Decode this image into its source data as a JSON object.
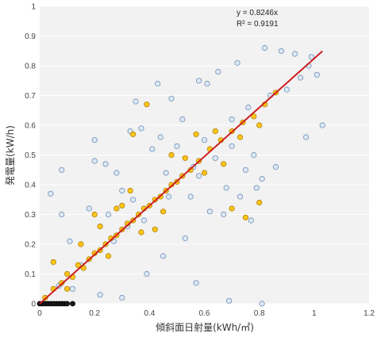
{
  "chart_data": {
    "type": "scatter",
    "title": "",
    "xlabel": "傾斜面日射量(kWh/㎡)",
    "ylabel": "発電量(kW/h)",
    "xlim": [
      0,
      1.2
    ],
    "ylim": [
      0,
      1
    ],
    "xticks": [
      "0",
      "0.2",
      "0.4",
      "0.6",
      "0.8",
      "1",
      "1.2"
    ],
    "yticks": [
      "0",
      "0.1",
      "0.2",
      "0.3",
      "0.4",
      "0.5",
      "0.6",
      "0.7",
      "0.8",
      "0.9",
      "1"
    ],
    "grid": "horizontal",
    "legend": "none",
    "colors": {
      "series_blue_fill": "#dde8f5",
      "series_blue_stroke": "#6f8fb5",
      "series_yellow_fill": "#ffc61a",
      "series_yellow_stroke": "#b07d00",
      "series_black": "#1a1a1a",
      "trendline": "#cc1f1f",
      "plot_background": "#f2f2f2",
      "gridline": "#ffffff"
    },
    "trendline": {
      "equation": "y = 0.8246x",
      "r_squared": "R² = 0.9191",
      "slope": 0.8246,
      "x_range": [
        0,
        1.03
      ]
    },
    "series": [
      {
        "values": [
          [
            0.88,
            0.85
          ],
          [
            0.72,
            0.81
          ],
          [
            0.82,
            0.86
          ],
          [
            0.65,
            0.78
          ],
          [
            0.93,
            0.84
          ],
          [
            0.58,
            0.75
          ],
          [
            0.48,
            0.69
          ],
          [
            0.35,
            0.68
          ],
          [
            0.43,
            0.74
          ],
          [
            0.61,
            0.74
          ],
          [
            0.98,
            0.8
          ],
          [
            1.01,
            0.77
          ],
          [
            1.03,
            0.6
          ],
          [
            0.97,
            0.56
          ],
          [
            0.86,
            0.46
          ],
          [
            0.78,
            0.5
          ],
          [
            0.75,
            0.45
          ],
          [
            0.81,
            0.42
          ],
          [
            0.79,
            0.39
          ],
          [
            0.68,
            0.39
          ],
          [
            0.57,
            0.07
          ],
          [
            0.69,
            0.01
          ],
          [
            0.81,
            0.0
          ],
          [
            0.3,
            0.38
          ],
          [
            0.24,
            0.47
          ],
          [
            0.2,
            0.48
          ],
          [
            0.08,
            0.45
          ],
          [
            0.04,
            0.37
          ],
          [
            0.08,
            0.3
          ],
          [
            0.2,
            0.55
          ],
          [
            0.33,
            0.58
          ],
          [
            0.37,
            0.59
          ],
          [
            0.44,
            0.56
          ],
          [
            0.5,
            0.53
          ],
          [
            0.15,
            0.13
          ],
          [
            0.12,
            0.05
          ],
          [
            0.07,
            0.06
          ],
          [
            0.11,
            0.21
          ],
          [
            0.22,
            0.03
          ],
          [
            0.3,
            0.02
          ],
          [
            0.39,
            0.1
          ],
          [
            0.45,
            0.16
          ],
          [
            0.38,
            0.28
          ],
          [
            0.55,
            0.36
          ],
          [
            0.62,
            0.31
          ],
          [
            0.67,
            0.3
          ],
          [
            0.73,
            0.36
          ],
          [
            0.77,
            0.28
          ],
          [
            0.56,
            0.46
          ],
          [
            0.52,
            0.62
          ],
          [
            0.41,
            0.52
          ],
          [
            0.28,
            0.44
          ],
          [
            0.18,
            0.32
          ],
          [
            0.25,
            0.3
          ],
          [
            0.32,
            0.26
          ],
          [
            0.46,
            0.44
          ],
          [
            0.6,
            0.55
          ],
          [
            0.7,
            0.62
          ],
          [
            0.76,
            0.66
          ],
          [
            0.84,
            0.7
          ],
          [
            0.9,
            0.72
          ],
          [
            0.95,
            0.76
          ],
          [
            0.99,
            0.83
          ],
          [
            0.53,
            0.22
          ],
          [
            0.47,
            0.36
          ],
          [
            0.58,
            0.43
          ],
          [
            0.64,
            0.49
          ],
          [
            0.7,
            0.53
          ],
          [
            0.34,
            0.35
          ],
          [
            0.27,
            0.21
          ]
        ]
      },
      {
        "values": [
          [
            0.02,
            0.02
          ],
          [
            0.05,
            0.05
          ],
          [
            0.08,
            0.07
          ],
          [
            0.1,
            0.1
          ],
          [
            0.12,
            0.09
          ],
          [
            0.14,
            0.13
          ],
          [
            0.16,
            0.12
          ],
          [
            0.18,
            0.15
          ],
          [
            0.2,
            0.17
          ],
          [
            0.22,
            0.18
          ],
          [
            0.24,
            0.2
          ],
          [
            0.26,
            0.22
          ],
          [
            0.28,
            0.23
          ],
          [
            0.3,
            0.25
          ],
          [
            0.32,
            0.27
          ],
          [
            0.34,
            0.28
          ],
          [
            0.36,
            0.3
          ],
          [
            0.38,
            0.32
          ],
          [
            0.4,
            0.33
          ],
          [
            0.42,
            0.35
          ],
          [
            0.44,
            0.36
          ],
          [
            0.46,
            0.38
          ],
          [
            0.48,
            0.4
          ],
          [
            0.5,
            0.41
          ],
          [
            0.52,
            0.43
          ],
          [
            0.55,
            0.45
          ],
          [
            0.58,
            0.48
          ],
          [
            0.62,
            0.52
          ],
          [
            0.66,
            0.55
          ],
          [
            0.7,
            0.58
          ],
          [
            0.74,
            0.61
          ],
          [
            0.78,
            0.63
          ],
          [
            0.82,
            0.67
          ],
          [
            0.86,
            0.71
          ],
          [
            0.22,
            0.26
          ],
          [
            0.3,
            0.33
          ],
          [
            0.37,
            0.24
          ],
          [
            0.45,
            0.31
          ],
          [
            0.53,
            0.49
          ],
          [
            0.6,
            0.44
          ],
          [
            0.67,
            0.47
          ],
          [
            0.73,
            0.56
          ],
          [
            0.8,
            0.6
          ],
          [
            0.39,
            0.67
          ],
          [
            0.34,
            0.57
          ],
          [
            0.2,
            0.3
          ],
          [
            0.7,
            0.32
          ],
          [
            0.75,
            0.29
          ],
          [
            0.8,
            0.34
          ],
          [
            0.05,
            0.14
          ],
          [
            0.15,
            0.2
          ],
          [
            0.25,
            0.16
          ],
          [
            0.42,
            0.25
          ],
          [
            0.48,
            0.5
          ],
          [
            0.57,
            0.57
          ],
          [
            0.64,
            0.58
          ],
          [
            0.28,
            0.32
          ],
          [
            0.33,
            0.38
          ],
          [
            0.1,
            0.05
          ]
        ]
      },
      {
        "values": [
          [
            0.0,
            0.0
          ],
          [
            0.01,
            0.0
          ],
          [
            0.02,
            0.0
          ],
          [
            0.03,
            0.0
          ],
          [
            0.04,
            0.0
          ],
          [
            0.05,
            0.0
          ],
          [
            0.06,
            0.0
          ],
          [
            0.07,
            0.0
          ],
          [
            0.08,
            0.0
          ],
          [
            0.09,
            0.0
          ],
          [
            0.1,
            0.0
          ],
          [
            0.12,
            0.0
          ]
        ]
      }
    ]
  }
}
